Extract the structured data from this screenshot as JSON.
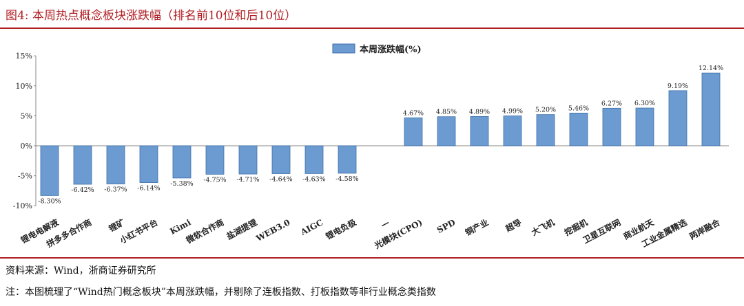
{
  "figure_title": "图4:  本周热点概念板块涨跌幅（排名前10位和后10位）",
  "source": "资料来源：Wind，浙商证券研究所",
  "note": "注：本图梳理了“Wind热门概念板块”本周涨跌幅，并剔除了连板指数、打板指数等非行业概念类指数",
  "chart_data": {
    "type": "bar",
    "title": "",
    "xlabel": "",
    "ylabel": "",
    "ylim": [
      -10,
      15
    ],
    "yticks": [
      "-10%",
      "-5%",
      "0%",
      "5%",
      "10%",
      "15%"
    ],
    "grid": false,
    "legend_placement": "top-center",
    "bar_color": "#6b9bd1",
    "categories": [
      "锂电电解液",
      "拼多多合作商",
      "锂矿",
      "小红书平台",
      "Kimi",
      "微软合作商",
      "盐湖提锂",
      "WEB3.0",
      "AIGC",
      "锂电负极",
      "—",
      "光模块(CPO)",
      "SPD",
      "铜产业",
      "超导",
      "大飞机",
      "挖掘机",
      "卫星互联网",
      "商业航天",
      "工业金属精选",
      "两岸融合"
    ],
    "series": [
      {
        "name": "本周涨跌幅(%)",
        "values": [
          -8.3,
          -6.42,
          -6.37,
          -6.14,
          -5.38,
          -4.75,
          -4.71,
          -4.64,
          -4.63,
          -4.58,
          null,
          4.67,
          4.85,
          4.89,
          4.99,
          5.2,
          5.46,
          6.27,
          6.3,
          9.19,
          12.14
        ],
        "labels": [
          "-8.30%",
          "-6.42%",
          "-6.37%",
          "-6.14%",
          "-5.38%",
          "-4.75%",
          "-4.71%",
          "-4.64%",
          "-4.63%",
          "-4.58%",
          "",
          "4.67%",
          "4.85%",
          "4.89%",
          "4.99%",
          "5.20%",
          "5.46%",
          "6.27%",
          "6.30%",
          "9.19%",
          "12.14%"
        ]
      }
    ]
  }
}
